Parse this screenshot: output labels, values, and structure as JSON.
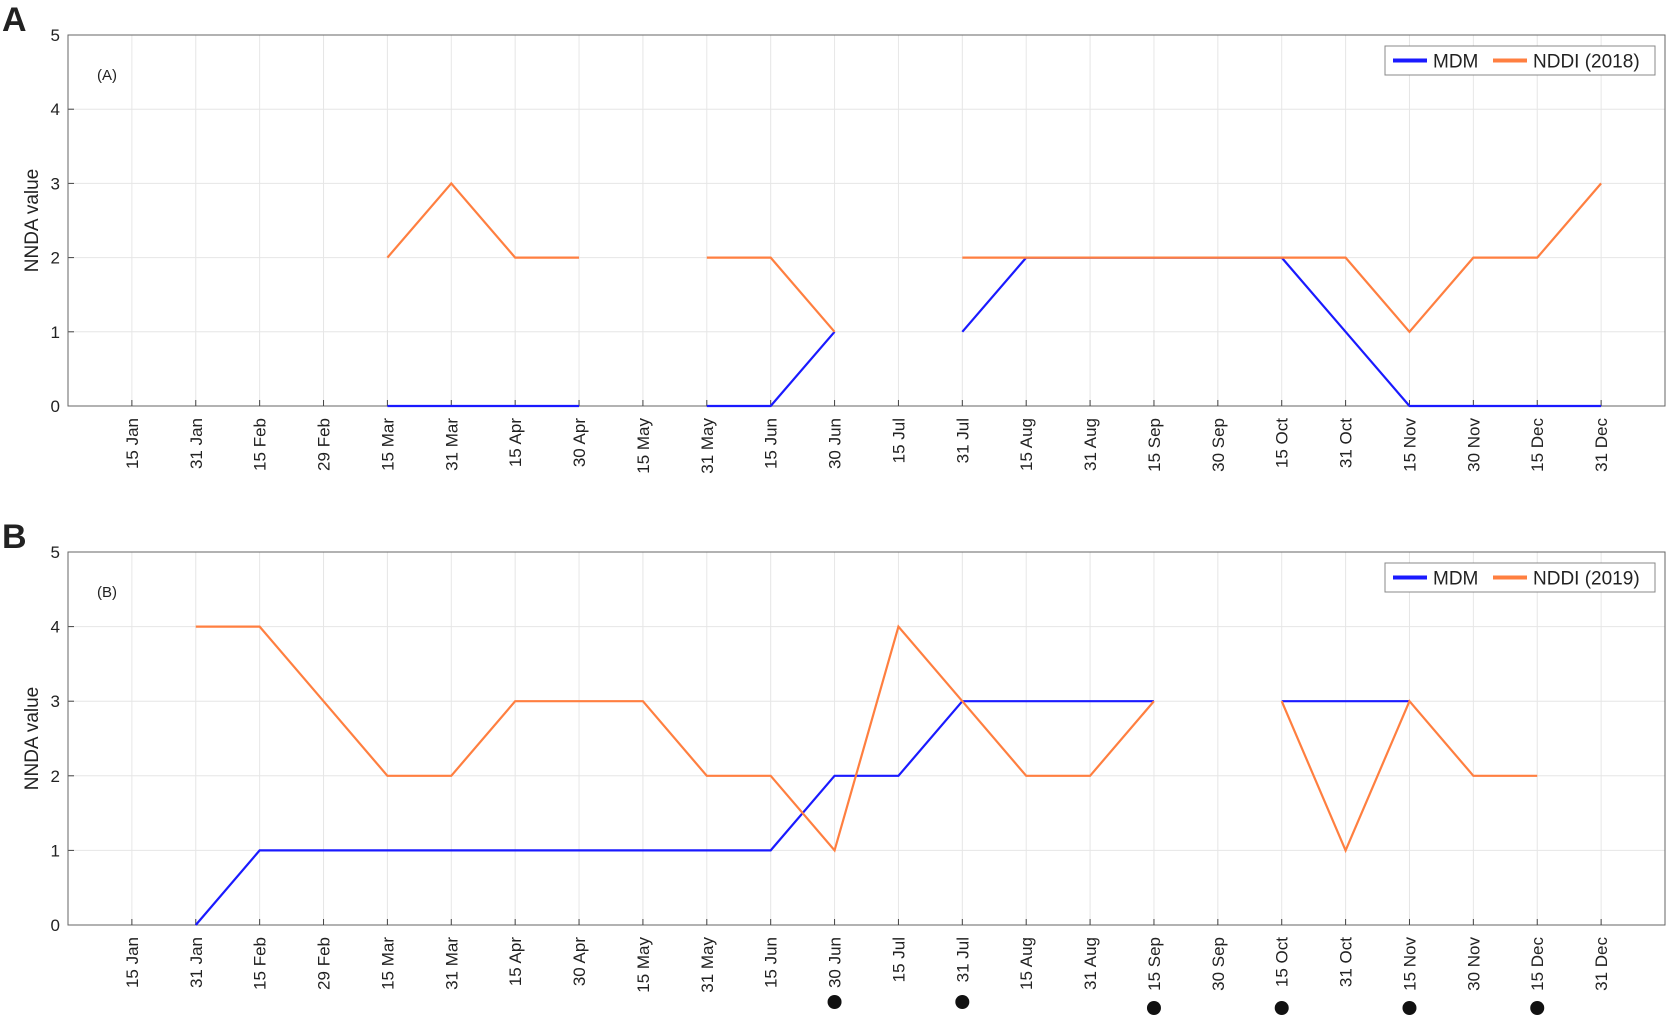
{
  "chart_data": [
    {
      "type": "line",
      "panel": "A",
      "annotation": "(A)",
      "ylabel": "NNDA value",
      "categories": [
        "15 Jan",
        "31 Jan",
        "15 Feb",
        "29 Feb",
        "15 Mar",
        "31 Mar",
        "15 Apr",
        "30 Apr",
        "15 May",
        "31 May",
        "15 Jun",
        "30 Jun",
        "15 Jul",
        "31 Jul",
        "15 Aug",
        "31 Aug",
        "15 Sep",
        "30 Sep",
        "15 Oct",
        "31 Oct",
        "15 Nov",
        "30 Nov",
        "15 Dec",
        "31 Dec"
      ],
      "series": [
        {
          "name": "MDM",
          "color": "#1a1aff",
          "values": [
            null,
            null,
            null,
            null,
            0,
            0,
            0,
            0,
            null,
            0,
            0,
            1,
            null,
            1,
            2,
            2,
            2,
            2,
            2,
            1,
            0,
            0,
            0,
            0
          ]
        },
        {
          "name": "NDDI (2018)",
          "color": "#ff7f40",
          "values": [
            null,
            null,
            null,
            null,
            2,
            3,
            2,
            2,
            null,
            2,
            2,
            1,
            null,
            2,
            2,
            2,
            2,
            2,
            2,
            2,
            1,
            2,
            2,
            3
          ]
        }
      ],
      "marked": [
        false,
        false,
        false,
        false,
        false,
        false,
        false,
        false,
        false,
        false,
        false,
        false,
        false,
        false,
        false,
        false,
        false,
        false,
        false,
        false,
        false,
        false,
        false,
        false
      ],
      "ylim": [
        0,
        5
      ],
      "yticks": [
        0,
        1,
        2,
        3,
        4,
        5
      ],
      "grid": true,
      "legend": "upper right"
    },
    {
      "type": "line",
      "panel": "B",
      "annotation": "(B)",
      "ylabel": "NNDA value",
      "categories": [
        "15 Jan",
        "31 Jan",
        "15 Feb",
        "29 Feb",
        "15 Mar",
        "31 Mar",
        "15 Apr",
        "30 Apr",
        "15 May",
        "31 May",
        "15 Jun",
        "30 Jun",
        "15 Jul",
        "31 Jul",
        "15 Aug",
        "31 Aug",
        "15 Sep",
        "30 Sep",
        "15 Oct",
        "31 Oct",
        "15 Nov",
        "30 Nov",
        "15 Dec",
        "31 Dec"
      ],
      "series": [
        {
          "name": "MDM",
          "color": "#1a1aff",
          "values": [
            null,
            0,
            1,
            1,
            1,
            1,
            1,
            1,
            1,
            1,
            1,
            2,
            2,
            3,
            3,
            3,
            3,
            null,
            3,
            3,
            3,
            null,
            null,
            null
          ]
        },
        {
          "name": "NDDI (2019)",
          "color": "#ff7f40",
          "values": [
            null,
            4,
            4,
            3,
            2,
            2,
            3,
            3,
            3,
            2,
            2,
            1,
            4,
            3,
            2,
            2,
            3,
            null,
            3,
            1,
            3,
            2,
            2,
            null
          ]
        }
      ],
      "marked": [
        false,
        false,
        false,
        false,
        false,
        false,
        false,
        false,
        false,
        false,
        false,
        true,
        false,
        true,
        false,
        false,
        true,
        false,
        true,
        false,
        true,
        false,
        true,
        false
      ],
      "ylim": [
        0,
        5
      ],
      "yticks": [
        0,
        1,
        2,
        3,
        4,
        5
      ],
      "grid": true,
      "legend": "upper right"
    }
  ]
}
